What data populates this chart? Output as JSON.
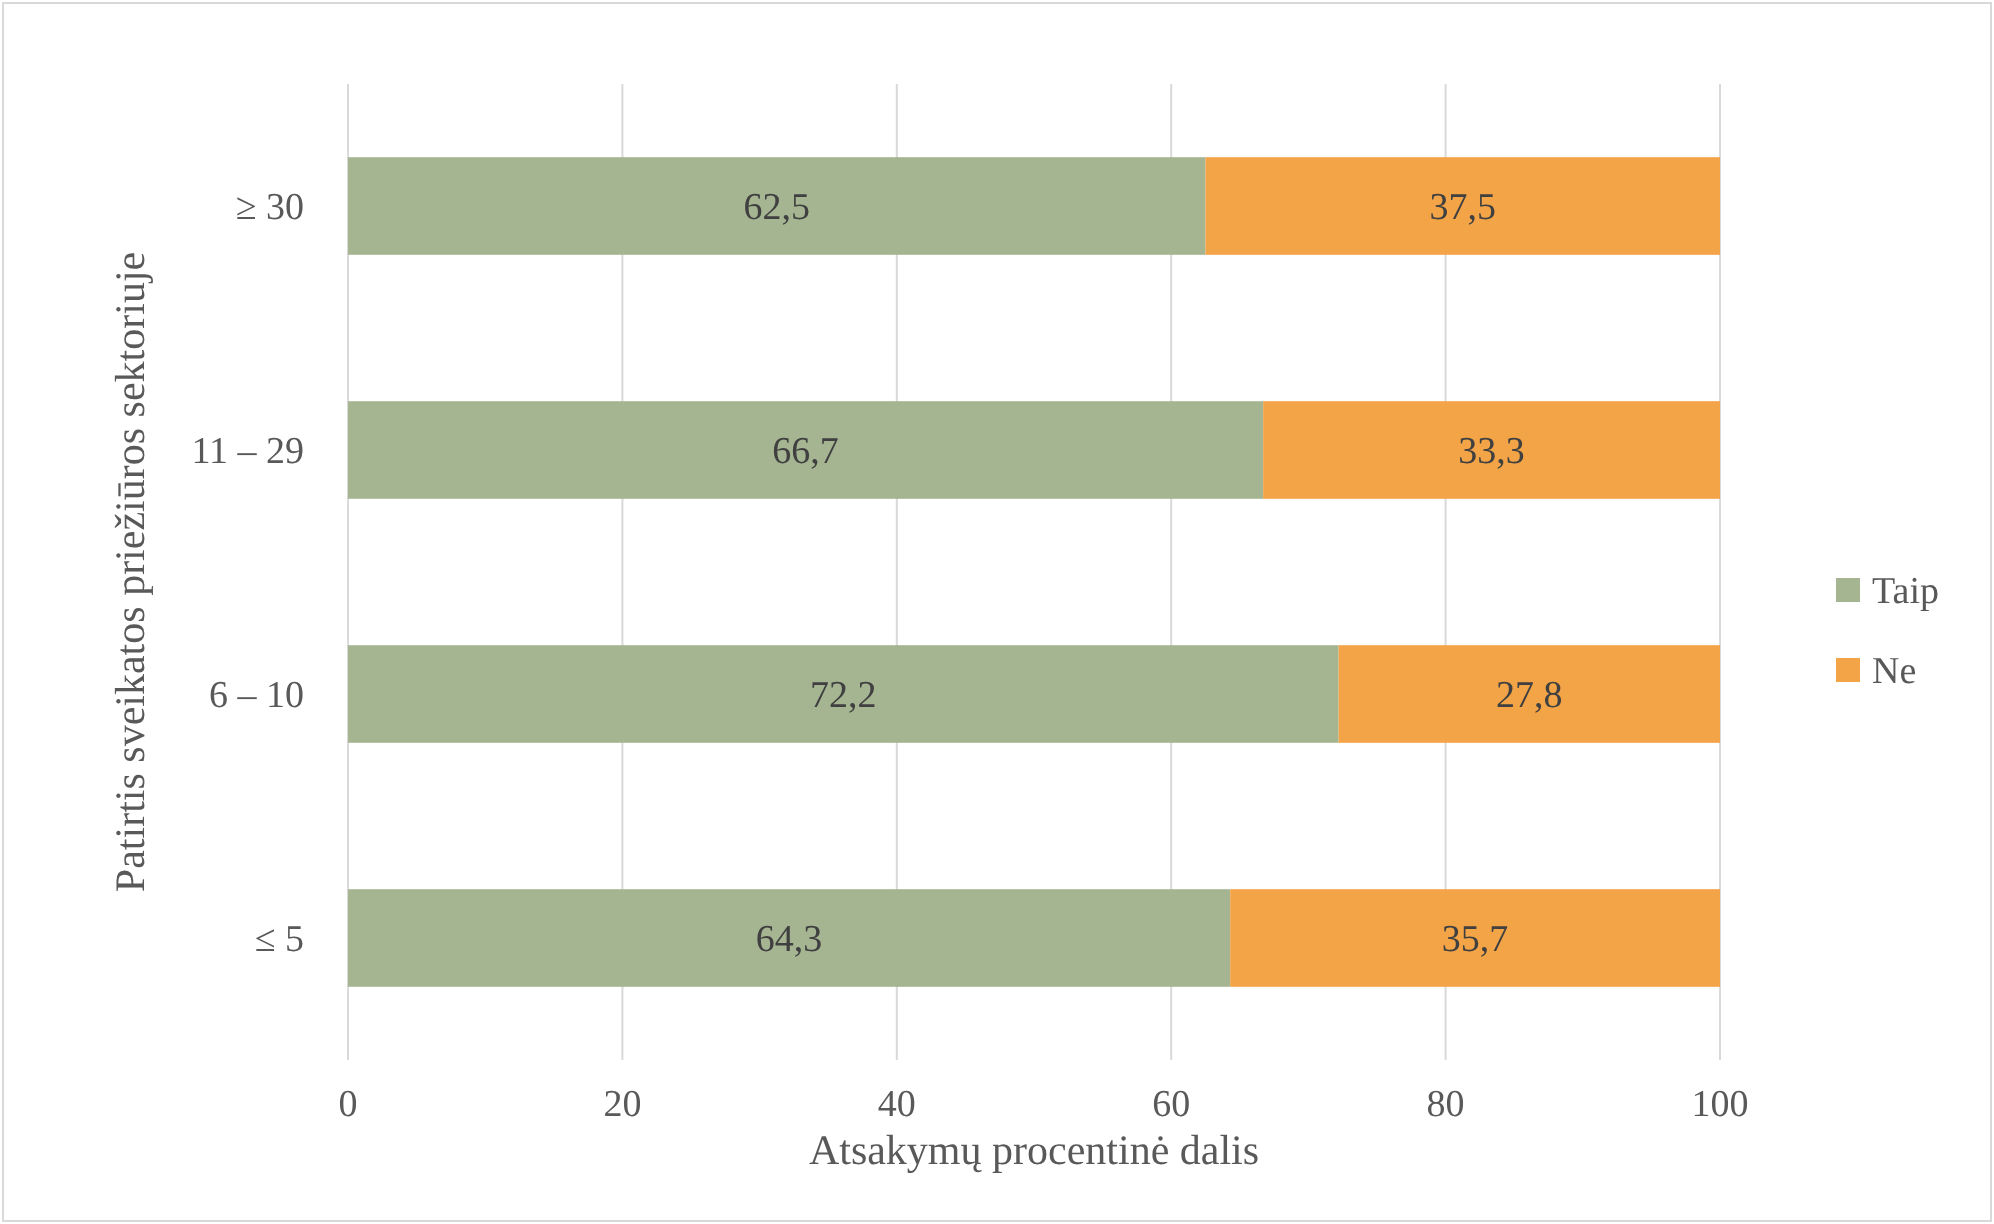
{
  "chart_data": {
    "type": "bar",
    "orientation": "horizontal",
    "stacked": true,
    "xlabel": "Atsakymų procentinė dalis",
    "ylabel": "Patirtis sveikatos priežiūros sektoriuje",
    "categories": [
      "≥ 30",
      "11 – 29",
      "6 – 10",
      "≤ 5"
    ],
    "series": [
      {
        "name": "Taip",
        "color": "#a5b592",
        "values": [
          62.5,
          66.7,
          72.2,
          64.3
        ],
        "value_labels": [
          "62,5",
          "66,7",
          "72,2",
          "64,3"
        ]
      },
      {
        "name": "Ne",
        "color": "#f2a447",
        "values": [
          37.5,
          33.3,
          27.8,
          35.7
        ],
        "value_labels": [
          "37,5",
          "33,3",
          "27,8",
          "35,7"
        ]
      }
    ],
    "xlim": [
      0,
      100
    ],
    "xticks": [
      0,
      20,
      40,
      60,
      80,
      100
    ],
    "grid": "x",
    "legend": "right"
  }
}
